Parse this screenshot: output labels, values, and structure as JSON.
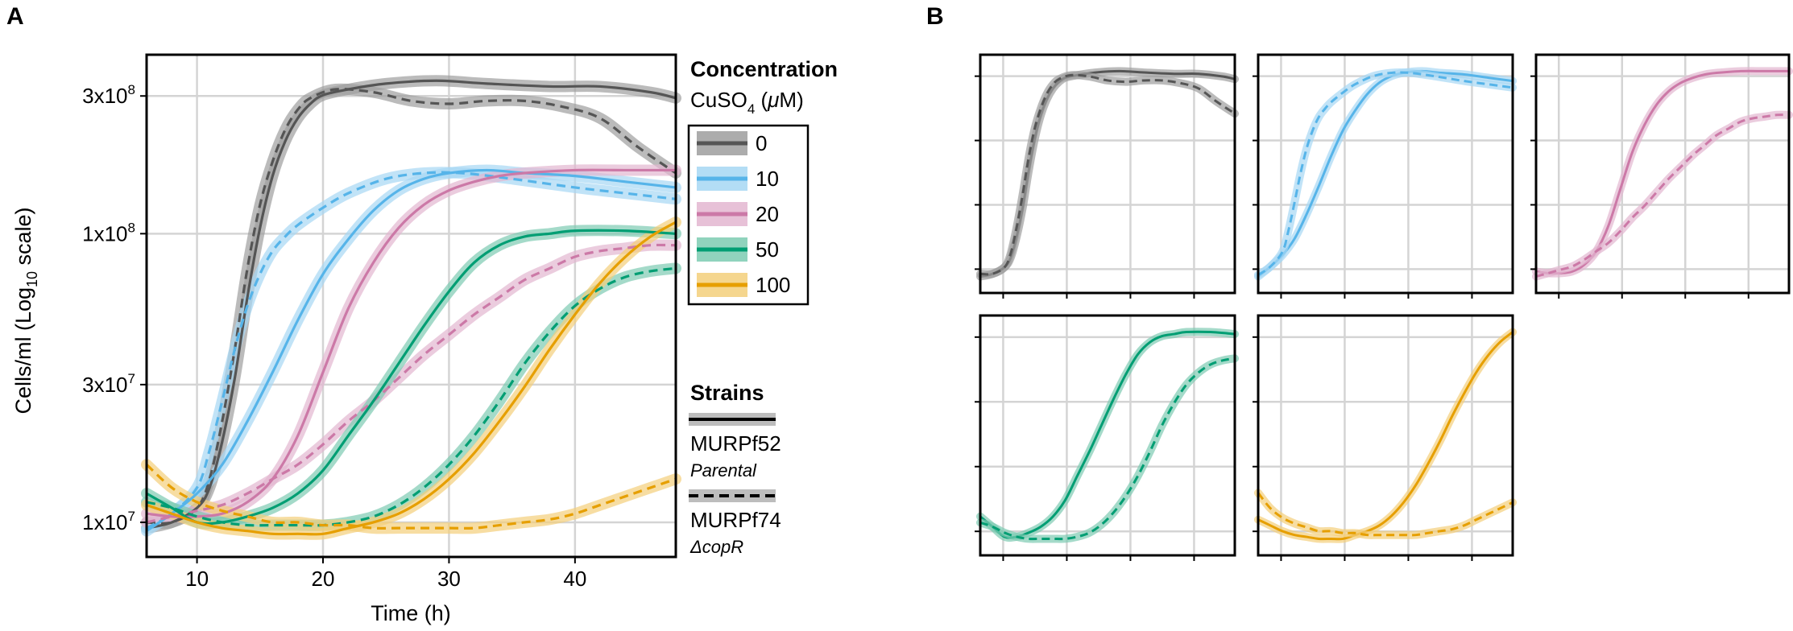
{
  "chart_data": [
    {
      "panel": "A",
      "type": "line",
      "panel_label": "A",
      "xlabel": "Time (h)",
      "ylabel": "Cells/ml (Log10 scale)",
      "ylabel_parts": {
        "main": "Cells/ml (Log",
        "sub": "10",
        "end": " scale)"
      },
      "x_scale": "linear",
      "y_scale": "log10",
      "xlim": [
        6,
        48
      ],
      "ylim_log10": [
        6.88,
        8.62
      ],
      "xticks": [
        10,
        20,
        30,
        40
      ],
      "xtick_labels": [
        "10",
        "20",
        "30",
        "40"
      ],
      "yticks": [
        10000000.0,
        30000000.0,
        100000000.0,
        300000000.0
      ],
      "ytick_labels": [
        {
          "base": "1x10",
          "exp": "7"
        },
        {
          "base": "3x10",
          "exp": "7"
        },
        {
          "base": "1x10",
          "exp": "8"
        },
        {
          "base": "3x10",
          "exp": "8"
        }
      ],
      "grid": true,
      "legend_concentration": {
        "title": "Concentration",
        "subtitle": {
          "pre": "CuSO",
          "sub": "4",
          "post": " (",
          "mu": "μ",
          "end": "M)"
        },
        "entries": [
          {
            "label": "0",
            "color": "#555555",
            "band": "#9e9e9e"
          },
          {
            "label": "10",
            "color": "#56b4e9",
            "band": "#a6d7f3"
          },
          {
            "label": "20",
            "color": "#cc79a7",
            "band": "#e3b6d0"
          },
          {
            "label": "50",
            "color": "#009e73",
            "band": "#7dcbb2"
          },
          {
            "label": "100",
            "color": "#e69f00",
            "band": "#f3cf7a"
          }
        ]
      },
      "legend_strains": {
        "title": "Strains",
        "entries": [
          {
            "name": "MURPf52",
            "desc": "Parental",
            "line": "solid"
          },
          {
            "name": "MURPf74",
            "desc": "ΔcopR",
            "line": "dashed"
          }
        ]
      },
      "series": [
        {
          "concentration": "0",
          "strain": "MURPf52",
          "line": "solid",
          "color": "#555555",
          "band_color": "#9e9e9e",
          "x": [
            6,
            8,
            10,
            11,
            12,
            13,
            14,
            15,
            16,
            17,
            18,
            19,
            20,
            22,
            25,
            29,
            33,
            38,
            42,
            46,
            48
          ],
          "y_log10": [
            6.98,
            7.0,
            7.05,
            7.12,
            7.28,
            7.5,
            7.78,
            8.02,
            8.2,
            8.32,
            8.4,
            8.45,
            8.48,
            8.5,
            8.52,
            8.53,
            8.52,
            8.51,
            8.51,
            8.49,
            8.47
          ]
        },
        {
          "concentration": "0",
          "strain": "MURPf74",
          "line": "dashed",
          "color": "#555555",
          "band_color": "#9e9e9e",
          "x": [
            6,
            8,
            10,
            11,
            12,
            13,
            14,
            15,
            16,
            17,
            18,
            19,
            21,
            24,
            27,
            30,
            33,
            36,
            39,
            42,
            45,
            48
          ],
          "y_log10": [
            7.0,
            7.0,
            7.05,
            7.15,
            7.35,
            7.6,
            7.88,
            8.1,
            8.25,
            8.36,
            8.43,
            8.47,
            8.5,
            8.49,
            8.46,
            8.45,
            8.46,
            8.46,
            8.44,
            8.4,
            8.3,
            8.21
          ]
        },
        {
          "concentration": "10",
          "strain": "MURPf52",
          "line": "solid",
          "color": "#56b4e9",
          "band_color": "#a6d7f3",
          "x": [
            6,
            8,
            10,
            12,
            14,
            16,
            18,
            20,
            22,
            24,
            26,
            28,
            30,
            33,
            36,
            40,
            44,
            48
          ],
          "y_log10": [
            6.97,
            7.03,
            7.1,
            7.2,
            7.35,
            7.52,
            7.7,
            7.86,
            7.98,
            8.08,
            8.15,
            8.19,
            8.21,
            8.22,
            8.21,
            8.2,
            8.18,
            8.16
          ]
        },
        {
          "concentration": "10",
          "strain": "MURPf74",
          "line": "dashed",
          "color": "#56b4e9",
          "band_color": "#a6d7f3",
          "x": [
            6,
            8,
            10,
            11,
            12,
            13,
            14,
            15,
            16,
            17,
            18,
            20,
            22,
            25,
            28,
            31,
            35,
            40,
            44,
            48
          ],
          "y_log10": [
            6.98,
            7.03,
            7.12,
            7.25,
            7.42,
            7.6,
            7.75,
            7.86,
            7.94,
            7.99,
            8.03,
            8.09,
            8.14,
            8.19,
            8.21,
            8.21,
            8.19,
            8.16,
            8.14,
            8.12
          ]
        },
        {
          "concentration": "20",
          "strain": "MURPf52",
          "line": "solid",
          "color": "#cc79a7",
          "band_color": "#e3b6d0",
          "x": [
            6,
            8,
            10,
            12,
            14,
            16,
            18,
            20,
            22,
            24,
            26,
            28,
            30,
            32,
            34,
            36,
            40,
            44,
            48
          ],
          "y_log10": [
            7.03,
            7.02,
            7.02,
            7.03,
            7.07,
            7.15,
            7.3,
            7.52,
            7.74,
            7.9,
            8.02,
            8.1,
            8.15,
            8.18,
            8.2,
            8.21,
            8.22,
            8.22,
            8.22
          ]
        },
        {
          "concentration": "20",
          "strain": "MURPf74",
          "line": "dashed",
          "color": "#cc79a7",
          "band_color": "#e3b6d0",
          "x": [
            6,
            8,
            10,
            12,
            14,
            16,
            18,
            20,
            22,
            24,
            26,
            28,
            30,
            32,
            34,
            36,
            38,
            40,
            42,
            44,
            46,
            48
          ],
          "y_log10": [
            7.0,
            7.02,
            7.04,
            7.06,
            7.1,
            7.15,
            7.2,
            7.27,
            7.35,
            7.42,
            7.5,
            7.58,
            7.65,
            7.72,
            7.78,
            7.84,
            7.88,
            7.92,
            7.94,
            7.95,
            7.96,
            7.96
          ]
        },
        {
          "concentration": "50",
          "strain": "MURPf52",
          "line": "solid",
          "color": "#009e73",
          "band_color": "#7dcbb2",
          "x": [
            6,
            8,
            10,
            12,
            14,
            16,
            18,
            20,
            22,
            24,
            26,
            28,
            30,
            32,
            34,
            36,
            38,
            40,
            44,
            48
          ],
          "y_log10": [
            7.1,
            7.05,
            7.0,
            7.0,
            7.02,
            7.05,
            7.1,
            7.18,
            7.3,
            7.42,
            7.55,
            7.68,
            7.8,
            7.9,
            7.96,
            7.99,
            8.0,
            8.01,
            8.01,
            8.0
          ]
        },
        {
          "concentration": "50",
          "strain": "MURPf74",
          "line": "dashed",
          "color": "#009e73",
          "band_color": "#7dcbb2",
          "x": [
            6,
            8,
            10,
            12,
            14,
            16,
            18,
            20,
            22,
            24,
            26,
            28,
            30,
            32,
            34,
            36,
            38,
            40,
            42,
            44,
            46,
            48
          ],
          "y_log10": [
            7.07,
            7.05,
            7.02,
            7.0,
            6.99,
            6.99,
            6.99,
            6.99,
            7.0,
            7.02,
            7.06,
            7.12,
            7.2,
            7.3,
            7.42,
            7.55,
            7.66,
            7.75,
            7.81,
            7.85,
            7.87,
            7.88
          ]
        },
        {
          "concentration": "100",
          "strain": "MURPf52",
          "line": "solid",
          "color": "#e69f00",
          "band_color": "#f3cf7a",
          "x": [
            6,
            8,
            10,
            12,
            14,
            16,
            18,
            20,
            22,
            24,
            26,
            28,
            30,
            32,
            34,
            36,
            38,
            40,
            42,
            44,
            46,
            48
          ],
          "y_log10": [
            7.06,
            7.03,
            7.0,
            6.98,
            6.97,
            6.96,
            6.96,
            6.96,
            6.98,
            7.0,
            7.03,
            7.08,
            7.15,
            7.24,
            7.35,
            7.47,
            7.6,
            7.72,
            7.83,
            7.92,
            7.99,
            8.04
          ]
        },
        {
          "concentration": "100",
          "strain": "MURPf74",
          "line": "dashed",
          "color": "#e69f00",
          "band_color": "#f3cf7a",
          "x": [
            6,
            8,
            10,
            12,
            14,
            16,
            18,
            20,
            22,
            24,
            26,
            28,
            30,
            32,
            34,
            36,
            38,
            40,
            42,
            44,
            46,
            48
          ],
          "y_log10": [
            7.2,
            7.12,
            7.07,
            7.04,
            7.02,
            7.0,
            7.0,
            6.99,
            6.99,
            6.98,
            6.98,
            6.98,
            6.98,
            6.98,
            6.99,
            7.0,
            7.01,
            7.03,
            7.06,
            7.09,
            7.12,
            7.15
          ]
        }
      ]
    },
    {
      "panel": "B",
      "type": "line",
      "panel_label": "B",
      "facets": 5,
      "grid": true,
      "facet_order": [
        "0",
        "10",
        "20",
        "50",
        "100"
      ],
      "note": "Small-multiple facets of panel A data, one facet per CuSO4 concentration, axes unlabeled (independent y ranges)."
    }
  ]
}
